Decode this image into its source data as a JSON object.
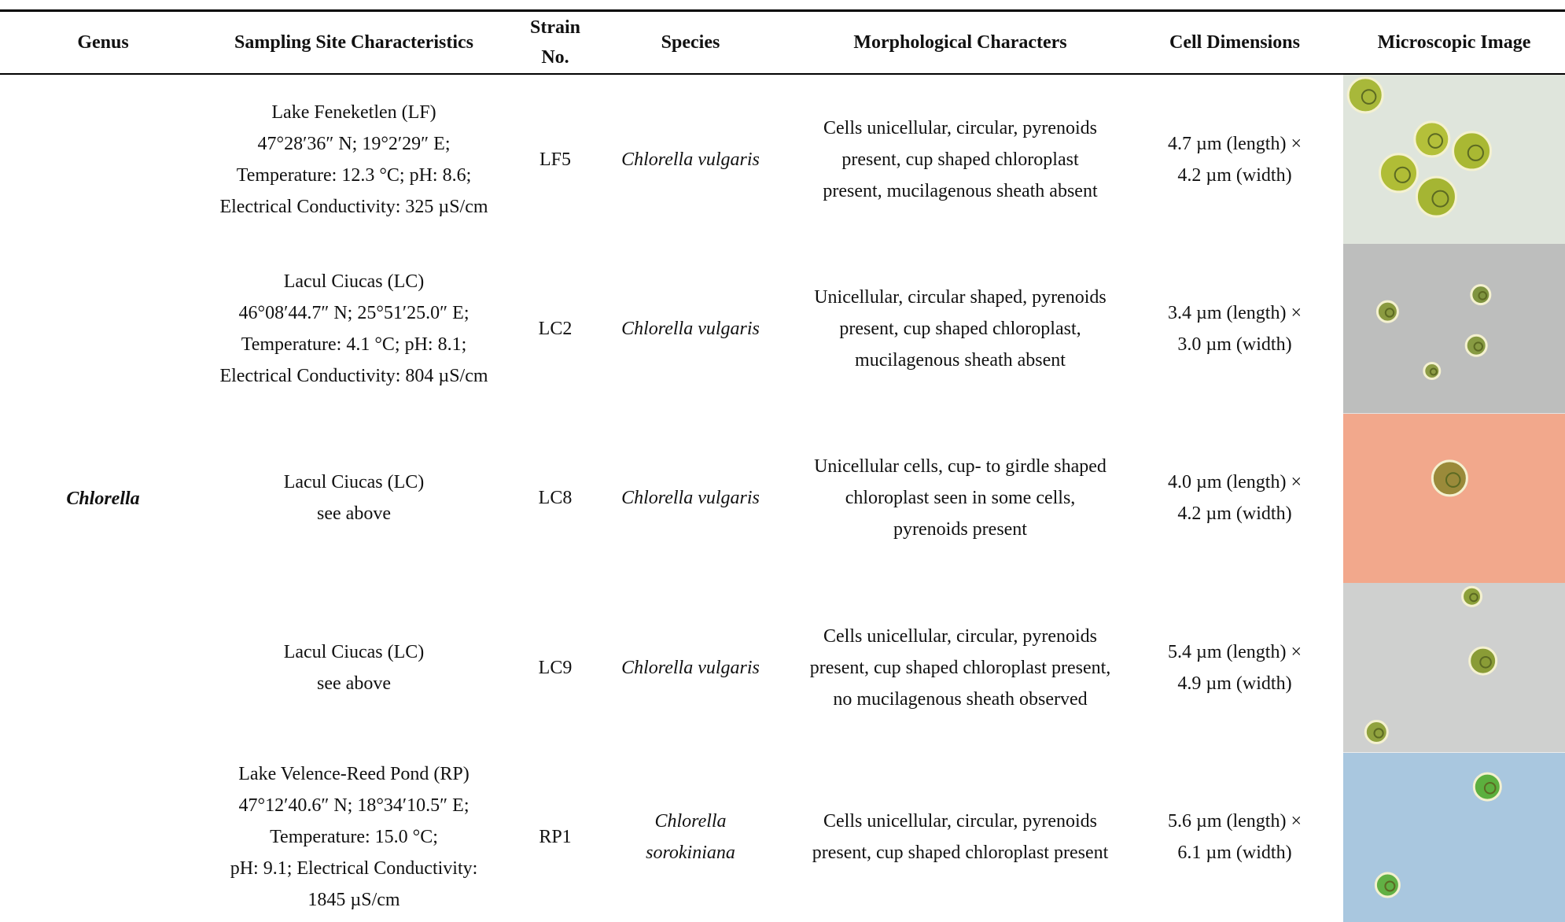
{
  "header": {
    "columns": [
      [
        "Genus"
      ],
      [
        "Sampling Site Characteristics"
      ],
      [
        "Strain",
        "No."
      ],
      [
        "Species"
      ],
      [
        "Morphological Characters"
      ],
      [
        "Cell Dimensions"
      ],
      [
        "Microscopic Image"
      ]
    ]
  },
  "genus": "Chlorella",
  "rows": [
    {
      "site": [
        "Lake Feneketlen (LF)",
        "47°28′36″ N; 19°2′29″ E;",
        "Temperature: 12.3 °C; pH: 8.6;",
        "Electrical Conductivity: 325 µS/cm"
      ],
      "strain": "LF5",
      "species": [
        "Chlorella vulgaris"
      ],
      "morphology": [
        "Cells unicellular, circular, pyrenoids",
        "present, cup shaped chloroplast",
        "present, mucilagenous sheath absent"
      ],
      "dimensions": [
        "4.7 µm (length) ×",
        "4.2 µm (width)"
      ]
    },
    {
      "site": [
        "Lacul Ciucas (LC)",
        "46°08′44.7″ N; 25°51′25.0″ E;",
        "Temperature: 4.1 °C; pH: 8.1;",
        "Electrical Conductivity: 804 µS/cm"
      ],
      "strain": "LC2",
      "species": [
        "Chlorella vulgaris"
      ],
      "morphology": [
        "Unicellular, circular shaped, pyrenoids",
        "present, cup shaped chloroplast,",
        "mucilagenous sheath absent"
      ],
      "dimensions": [
        "3.4 µm (length) ×",
        "3.0 µm (width)"
      ]
    },
    {
      "site": [
        "Lacul Ciucas (LC)",
        "see above"
      ],
      "strain": "LC8",
      "species": [
        "Chlorella vulgaris"
      ],
      "morphology": [
        "Unicellular cells, cup- to girdle shaped",
        "chloroplast seen in some cells,",
        "pyrenoids present"
      ],
      "dimensions": [
        "4.0 µm (length) ×",
        "4.2 µm (width)"
      ]
    },
    {
      "site": [
        "Lacul Ciucas (LC)",
        "see above"
      ],
      "strain": "LC9",
      "species": [
        "Chlorella vulgaris"
      ],
      "morphology": [
        "Cells unicellular, circular, pyrenoids",
        "present, cup shaped chloroplast present,",
        "no mucilagenous sheath observed"
      ],
      "dimensions": [
        "5.4 µm (length) ×",
        "4.9 µm (width)"
      ]
    },
    {
      "site": [
        "Lake Velence-Reed Pond (RP)",
        "47°12′40.6″ N; 18°34′10.5″ E;",
        "Temperature: 15.0 °C;",
        "pH: 9.1; Electrical Conductivity:",
        "1845 µS/cm"
      ],
      "strain": "RP1",
      "species": [
        "Chlorella",
        "sorokiniana"
      ],
      "morphology": [
        "Cells unicellular, circular, pyrenoids",
        "present, cup shaped chloroplast present"
      ],
      "dimensions": [
        "5.6 µm (length) ×",
        "6.1 µm (width)"
      ]
    }
  ]
}
